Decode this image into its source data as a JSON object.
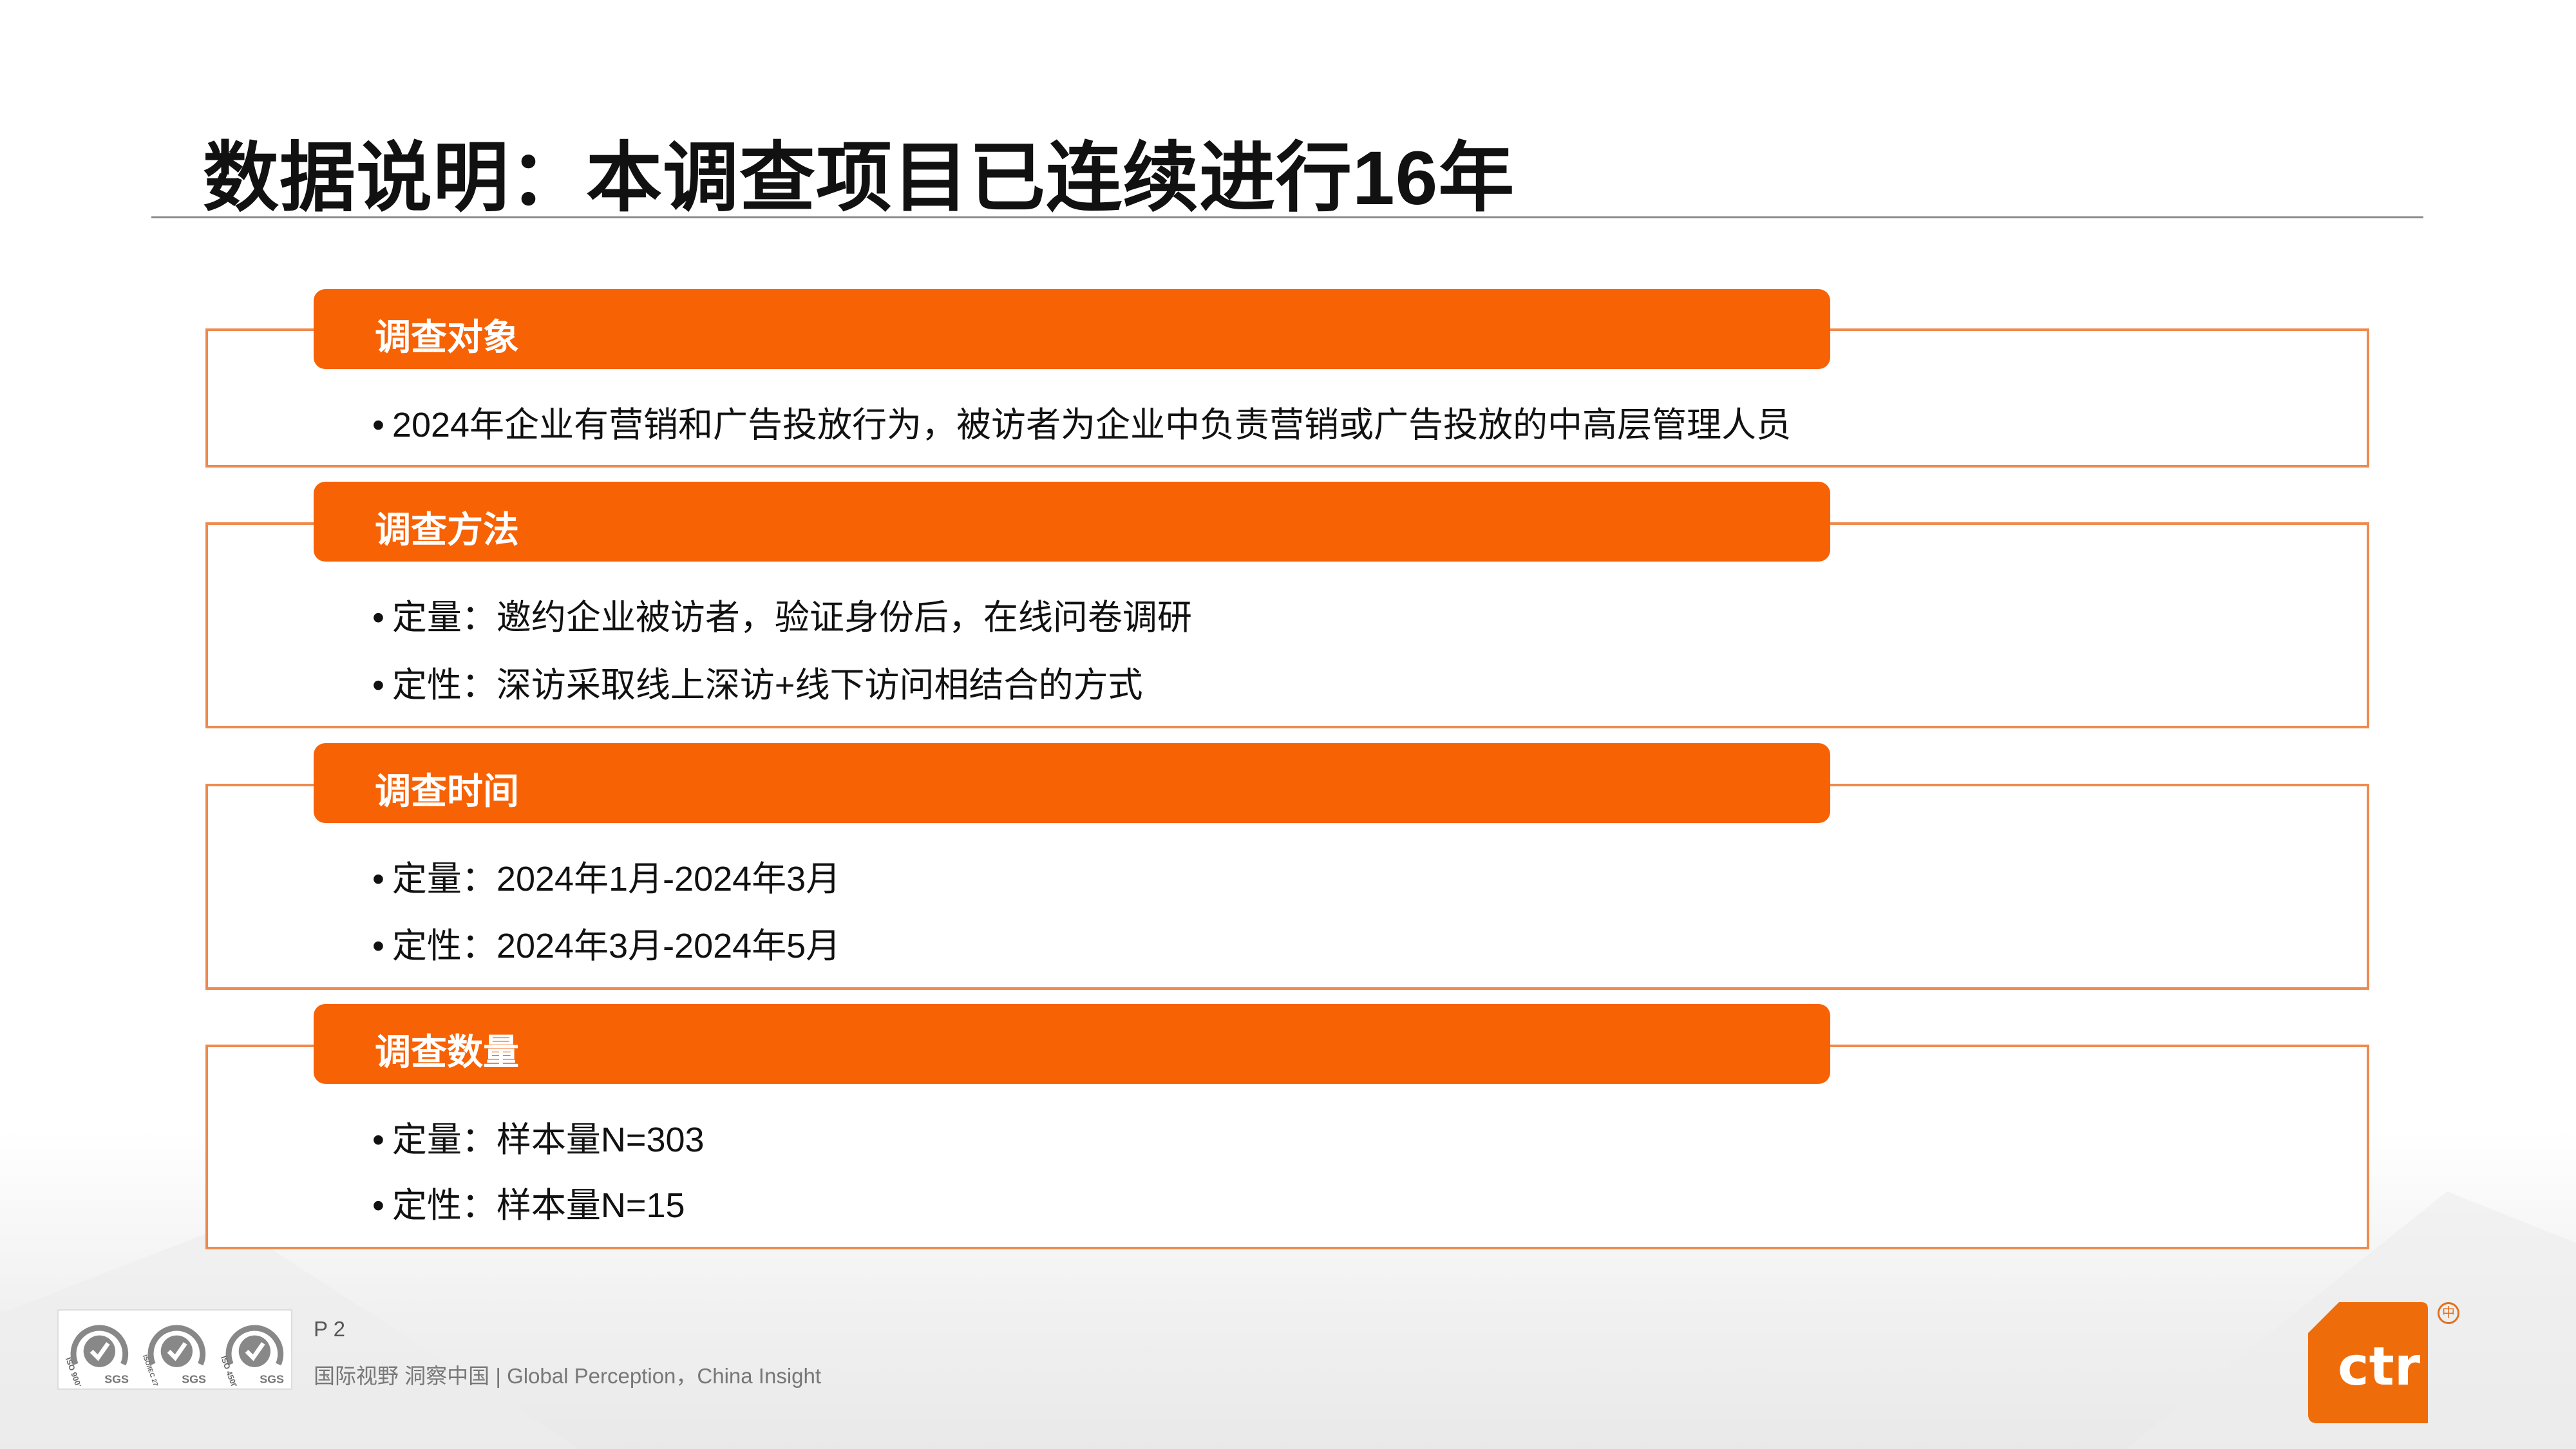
{
  "title": "数据说明：本调查项目已连续进行16年",
  "sections": [
    {
      "header": "调查对象",
      "lines": [
        "2024年企业有营销和广告投放行为，被访者为企业中负责营销或广告投放的中高层管理人员"
      ]
    },
    {
      "header": "调查方法",
      "lines": [
        "定量：邀约企业被访者，验证身份后，在线问卷调研",
        "定性：深访采取线上深访+线下访问相结合的方式"
      ]
    },
    {
      "header": "调查时间",
      "lines": [
        "定量：2024年1月-2024年3月",
        "定性：2024年3月-2024年5月"
      ]
    },
    {
      "header": "调查数量",
      "lines": [
        "定量：样本量N=303",
        "定性：样本量N=15"
      ]
    }
  ],
  "footer": {
    "page": "P 2",
    "tagline": "国际视野  洞察中国 |  Global Perception，China Insight",
    "certs": [
      "ISO 9001",
      "ISO/IEC 27001",
      "ISO 45001"
    ],
    "cert_brand": "SGS",
    "logo_text": "ctr",
    "logo_mark": "中"
  },
  "colors": {
    "accent": "#f76205",
    "border": "#ef8a4e",
    "text": "#111111"
  }
}
